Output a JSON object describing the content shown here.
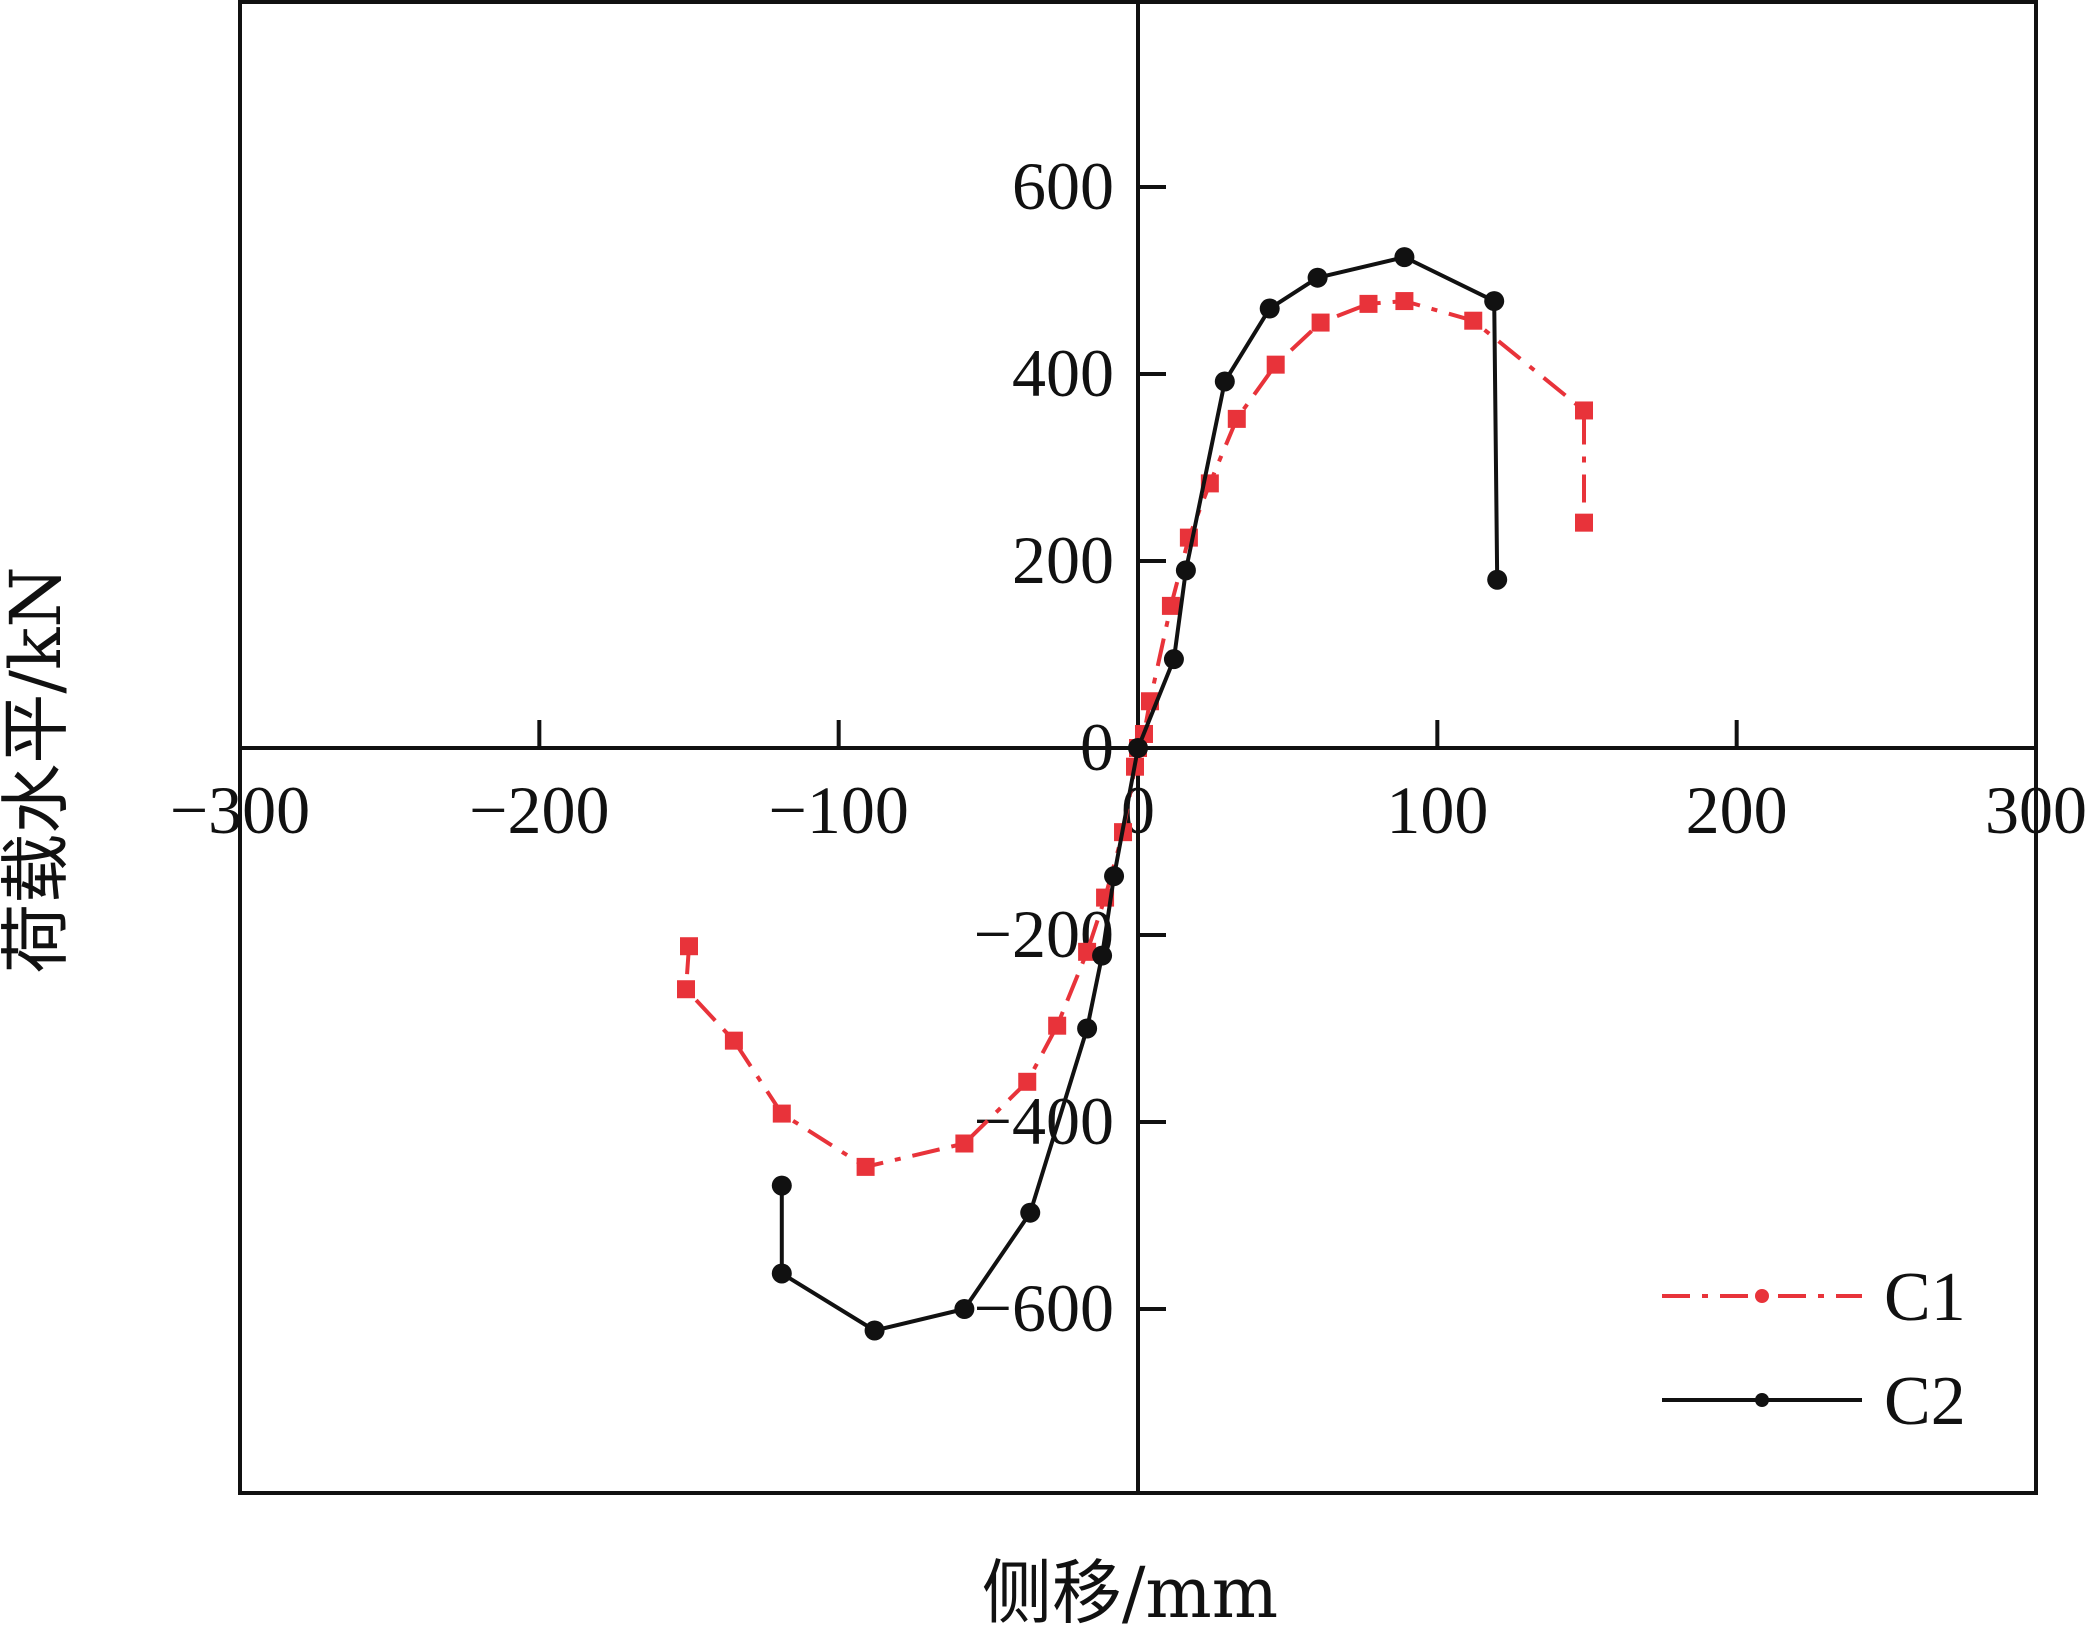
{
  "chart_data": {
    "type": "line",
    "title": "",
    "xlabel": "侧移/mm",
    "ylabel": "荷载水平/kN",
    "xlim": [
      -300,
      300
    ],
    "ylim": [
      -800,
      800
    ],
    "xticks": [
      -300,
      -200,
      -100,
      0,
      100,
      200,
      300
    ],
    "yticks": [
      -600,
      -400,
      -200,
      0,
      200,
      400,
      600
    ],
    "xtick_labels": [
      "−300",
      "−200",
      "−100",
      "0",
      "100",
      "200",
      "300"
    ],
    "ytick_labels": [
      "−600",
      "−400",
      "−200",
      "0",
      "200",
      "400",
      "600"
    ],
    "grid": false,
    "legend_position": "bottom-right",
    "series": [
      {
        "name": "C1",
        "color": "#e8333a",
        "line_style": "dash-dot",
        "marker": "square",
        "points": [
          [
            -150,
            -212
          ],
          [
            -151,
            -258
          ],
          [
            -135,
            -313
          ],
          [
            -119,
            -391
          ],
          [
            -91,
            -448
          ],
          [
            -58,
            -423
          ],
          [
            -37,
            -357
          ],
          [
            -27,
            -297
          ],
          [
            -17,
            -218
          ],
          [
            -11,
            -160
          ],
          [
            -5,
            -90
          ],
          [
            -1,
            -20
          ],
          [
            0,
            0
          ],
          [
            2,
            15
          ],
          [
            4,
            50
          ],
          [
            11,
            152
          ],
          [
            17,
            225
          ],
          [
            24,
            283
          ],
          [
            33,
            352
          ],
          [
            46,
            410
          ],
          [
            61,
            455
          ],
          [
            77,
            475
          ],
          [
            89,
            478
          ],
          [
            112,
            457
          ],
          [
            149,
            361
          ],
          [
            149,
            241
          ]
        ]
      },
      {
        "name": "C2",
        "color": "#111111",
        "line_style": "solid",
        "marker": "circle",
        "points": [
          [
            -119,
            -468
          ],
          [
            -119,
            -562
          ],
          [
            -88,
            -623
          ],
          [
            -58,
            -600
          ],
          [
            -36,
            -497
          ],
          [
            -17,
            -300
          ],
          [
            -12,
            -222
          ],
          [
            -8,
            -137
          ],
          [
            0,
            0
          ],
          [
            12,
            95
          ],
          [
            16,
            190
          ],
          [
            29,
            392
          ],
          [
            44,
            470
          ],
          [
            60,
            503
          ],
          [
            89,
            525
          ],
          [
            119,
            478
          ],
          [
            120,
            180
          ]
        ]
      }
    ]
  }
}
